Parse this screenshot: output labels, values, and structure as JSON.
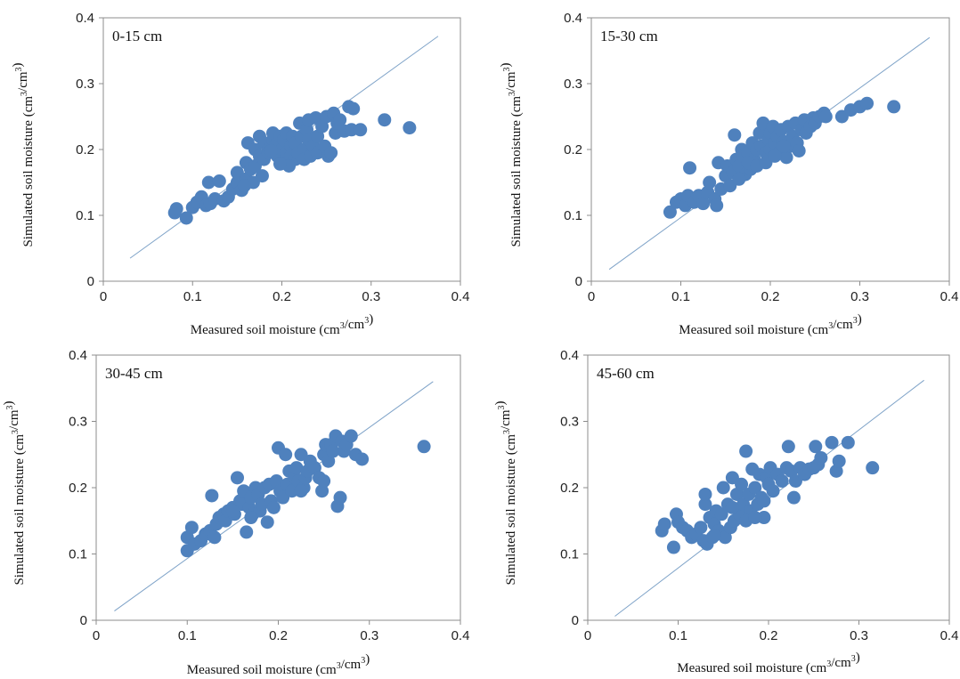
{
  "style": {
    "point_color": "#4f81bd",
    "line_color": "#7fa3c8"
  },
  "chart_data": [
    {
      "type": "scatter",
      "title": "0-15 cm",
      "xlabel": "Measured soil moisture (cm3/cm3)",
      "ylabel": "Simulated soil moisture (cm3/cm3)",
      "xlim": [
        0,
        0.4
      ],
      "ylim": [
        0,
        0.4
      ],
      "xticks": [
        "0",
        "0.1",
        "0.2",
        "0.3",
        "0.4"
      ],
      "yticks": [
        "0",
        "0.1",
        "0.2",
        "0.3",
        "0.4"
      ],
      "reference_line": {
        "x": [
          0.03,
          0.375
        ],
        "y": [
          0.035,
          0.372
        ]
      },
      "points": [
        [
          0.08,
          0.104
        ],
        [
          0.082,
          0.11
        ],
        [
          0.093,
          0.096
        ],
        [
          0.1,
          0.112
        ],
        [
          0.105,
          0.12
        ],
        [
          0.11,
          0.128
        ],
        [
          0.115,
          0.115
        ],
        [
          0.12,
          0.118
        ],
        [
          0.118,
          0.15
        ],
        [
          0.125,
          0.125
        ],
        [
          0.13,
          0.152
        ],
        [
          0.135,
          0.122
        ],
        [
          0.14,
          0.128
        ],
        [
          0.145,
          0.14
        ],
        [
          0.15,
          0.15
        ],
        [
          0.15,
          0.165
        ],
        [
          0.155,
          0.138
        ],
        [
          0.16,
          0.155
        ],
        [
          0.16,
          0.18
        ],
        [
          0.162,
          0.21
        ],
        [
          0.165,
          0.17
        ],
        [
          0.17,
          0.175
        ],
        [
          0.17,
          0.2
        ],
        [
          0.175,
          0.19
        ],
        [
          0.175,
          0.22
        ],
        [
          0.18,
          0.21
        ],
        [
          0.18,
          0.185
        ],
        [
          0.185,
          0.2
        ],
        [
          0.185,
          0.195
        ],
        [
          0.19,
          0.215
        ],
        [
          0.19,
          0.225
        ],
        [
          0.192,
          0.205
        ],
        [
          0.195,
          0.21
        ],
        [
          0.195,
          0.19
        ],
        [
          0.198,
          0.22
        ],
        [
          0.2,
          0.2
        ],
        [
          0.2,
          0.18
        ],
        [
          0.202,
          0.215
        ],
        [
          0.205,
          0.225
        ],
        [
          0.205,
          0.195
        ],
        [
          0.21,
          0.205
        ],
        [
          0.21,
          0.19
        ],
        [
          0.212,
          0.22
        ],
        [
          0.215,
          0.185
        ],
        [
          0.215,
          0.21
        ],
        [
          0.218,
          0.195
        ],
        [
          0.22,
          0.24
        ],
        [
          0.222,
          0.22
        ],
        [
          0.225,
          0.2
        ],
        [
          0.225,
          0.185
        ],
        [
          0.228,
          0.23
        ],
        [
          0.23,
          0.215
        ],
        [
          0.23,
          0.245
        ],
        [
          0.232,
          0.19
        ],
        [
          0.235,
          0.205
        ],
        [
          0.238,
          0.248
        ],
        [
          0.24,
          0.22
        ],
        [
          0.24,
          0.195
        ],
        [
          0.245,
          0.235
        ],
        [
          0.248,
          0.205
        ],
        [
          0.25,
          0.25
        ],
        [
          0.252,
          0.19
        ],
        [
          0.255,
          0.195
        ],
        [
          0.258,
          0.255
        ],
        [
          0.26,
          0.225
        ],
        [
          0.262,
          0.24
        ],
        [
          0.265,
          0.245
        ],
        [
          0.27,
          0.228
        ],
        [
          0.275,
          0.265
        ],
        [
          0.278,
          0.23
        ],
        [
          0.28,
          0.262
        ],
        [
          0.288,
          0.23
        ],
        [
          0.315,
          0.245
        ],
        [
          0.343,
          0.233
        ],
        [
          0.168,
          0.15
        ],
        [
          0.178,
          0.16
        ],
        [
          0.158,
          0.145
        ],
        [
          0.188,
          0.198
        ],
        [
          0.208,
          0.175
        ],
        [
          0.198,
          0.178
        ]
      ]
    },
    {
      "type": "scatter",
      "title": "15-30 cm",
      "xlabel": "Measured soil moisture (cm3/cm3)",
      "ylabel": "Simulated soil moisture (cm3/cm3)",
      "xlim": [
        0,
        0.4
      ],
      "ylim": [
        0,
        0.4
      ],
      "xticks": [
        "0",
        "0.1",
        "0.2",
        "0.3",
        "0.4"
      ],
      "yticks": [
        "0",
        "0.1",
        "0.2",
        "0.3",
        "0.4"
      ],
      "reference_line": {
        "x": [
          0.02,
          0.378
        ],
        "y": [
          0.018,
          0.37
        ]
      },
      "points": [
        [
          0.088,
          0.105
        ],
        [
          0.095,
          0.12
        ],
        [
          0.1,
          0.125
        ],
        [
          0.105,
          0.115
        ],
        [
          0.108,
          0.13
        ],
        [
          0.11,
          0.172
        ],
        [
          0.115,
          0.12
        ],
        [
          0.12,
          0.13
        ],
        [
          0.125,
          0.118
        ],
        [
          0.13,
          0.135
        ],
        [
          0.132,
          0.15
        ],
        [
          0.138,
          0.125
        ],
        [
          0.14,
          0.115
        ],
        [
          0.142,
          0.18
        ],
        [
          0.145,
          0.14
        ],
        [
          0.15,
          0.16
        ],
        [
          0.152,
          0.175
        ],
        [
          0.155,
          0.145
        ],
        [
          0.158,
          0.165
        ],
        [
          0.16,
          0.222
        ],
        [
          0.162,
          0.185
        ],
        [
          0.165,
          0.175
        ],
        [
          0.168,
          0.2
        ],
        [
          0.17,
          0.19
        ],
        [
          0.172,
          0.162
        ],
        [
          0.175,
          0.195
        ],
        [
          0.178,
          0.17
        ],
        [
          0.18,
          0.21
        ],
        [
          0.182,
          0.185
        ],
        [
          0.185,
          0.2
        ],
        [
          0.188,
          0.225
        ],
        [
          0.19,
          0.205
        ],
        [
          0.192,
          0.24
        ],
        [
          0.195,
          0.195
        ],
        [
          0.198,
          0.215
        ],
        [
          0.2,
          0.225
        ],
        [
          0.2,
          0.2
        ],
        [
          0.203,
          0.235
        ],
        [
          0.205,
          0.21
        ],
        [
          0.208,
          0.22
        ],
        [
          0.21,
          0.195
        ],
        [
          0.212,
          0.23
        ],
        [
          0.215,
          0.212
        ],
        [
          0.218,
          0.188
        ],
        [
          0.22,
          0.235
        ],
        [
          0.222,
          0.205
        ],
        [
          0.225,
          0.22
        ],
        [
          0.228,
          0.24
        ],
        [
          0.23,
          0.21
        ],
        [
          0.232,
          0.198
        ],
        [
          0.235,
          0.23
        ],
        [
          0.238,
          0.245
        ],
        [
          0.24,
          0.225
        ],
        [
          0.245,
          0.235
        ],
        [
          0.248,
          0.248
        ],
        [
          0.25,
          0.24
        ],
        [
          0.255,
          0.25
        ],
        [
          0.26,
          0.255
        ],
        [
          0.262,
          0.25
        ],
        [
          0.28,
          0.25
        ],
        [
          0.29,
          0.26
        ],
        [
          0.3,
          0.265
        ],
        [
          0.308,
          0.27
        ],
        [
          0.338,
          0.265
        ],
        [
          0.175,
          0.18
        ],
        [
          0.185,
          0.175
        ],
        [
          0.195,
          0.18
        ],
        [
          0.165,
          0.155
        ],
        [
          0.205,
          0.19
        ],
        [
          0.215,
          0.205
        ]
      ]
    },
    {
      "type": "scatter",
      "title": "30-45 cm",
      "xlabel": "Measured soil moisture (cm3/cm3)",
      "ylabel": "Simulated soil moisture (cm3/cm3)",
      "xlim": [
        0,
        0.4
      ],
      "ylim": [
        0,
        0.4
      ],
      "xticks": [
        "0",
        "0.1",
        "0.2",
        "0.3",
        "0.4"
      ],
      "yticks": [
        "0",
        "0.1",
        "0.2",
        "0.3",
        "0.4"
      ],
      "reference_line": {
        "x": [
          0.02,
          0.37
        ],
        "y": [
          0.014,
          0.36
        ]
      },
      "points": [
        [
          0.1,
          0.105
        ],
        [
          0.1,
          0.125
        ],
        [
          0.105,
          0.14
        ],
        [
          0.108,
          0.115
        ],
        [
          0.115,
          0.12
        ],
        [
          0.12,
          0.13
        ],
        [
          0.125,
          0.135
        ],
        [
          0.127,
          0.188
        ],
        [
          0.13,
          0.125
        ],
        [
          0.132,
          0.145
        ],
        [
          0.135,
          0.155
        ],
        [
          0.14,
          0.16
        ],
        [
          0.142,
          0.15
        ],
        [
          0.145,
          0.165
        ],
        [
          0.15,
          0.17
        ],
        [
          0.152,
          0.16
        ],
        [
          0.155,
          0.215
        ],
        [
          0.158,
          0.18
        ],
        [
          0.16,
          0.175
        ],
        [
          0.162,
          0.195
        ],
        [
          0.165,
          0.133
        ],
        [
          0.168,
          0.17
        ],
        [
          0.17,
          0.185
        ],
        [
          0.172,
          0.16
        ],
        [
          0.175,
          0.2
        ],
        [
          0.178,
          0.19
        ],
        [
          0.18,
          0.165
        ],
        [
          0.182,
          0.175
        ],
        [
          0.185,
          0.2
        ],
        [
          0.188,
          0.148
        ],
        [
          0.19,
          0.205
        ],
        [
          0.192,
          0.18
        ],
        [
          0.195,
          0.17
        ],
        [
          0.198,
          0.21
        ],
        [
          0.2,
          0.26
        ],
        [
          0.202,
          0.195
        ],
        [
          0.205,
          0.185
        ],
        [
          0.208,
          0.25
        ],
        [
          0.21,
          0.205
        ],
        [
          0.212,
          0.225
        ],
        [
          0.215,
          0.195
        ],
        [
          0.218,
          0.215
        ],
        [
          0.22,
          0.23
        ],
        [
          0.222,
          0.21
        ],
        [
          0.225,
          0.25
        ],
        [
          0.228,
          0.2
        ],
        [
          0.23,
          0.215
        ],
        [
          0.232,
          0.225
        ],
        [
          0.235,
          0.24
        ],
        [
          0.24,
          0.23
        ],
        [
          0.245,
          0.215
        ],
        [
          0.248,
          0.195
        ],
        [
          0.25,
          0.25
        ],
        [
          0.252,
          0.265
        ],
        [
          0.255,
          0.24
        ],
        [
          0.258,
          0.265
        ],
        [
          0.26,
          0.255
        ],
        [
          0.263,
          0.278
        ],
        [
          0.265,
          0.172
        ],
        [
          0.268,
          0.185
        ],
        [
          0.27,
          0.27
        ],
        [
          0.272,
          0.255
        ],
        [
          0.275,
          0.265
        ],
        [
          0.28,
          0.278
        ],
        [
          0.285,
          0.25
        ],
        [
          0.292,
          0.243
        ],
        [
          0.36,
          0.262
        ],
        [
          0.17,
          0.155
        ],
        [
          0.15,
          0.165
        ],
        [
          0.225,
          0.195
        ],
        [
          0.25,
          0.21
        ]
      ]
    },
    {
      "type": "scatter",
      "title": "45-60 cm",
      "xlabel": "Measured soil moisture (cm3/cm3)",
      "ylabel": "Simulated soil moisture (cm3/cm3)",
      "xlim": [
        0,
        0.4
      ],
      "ylim": [
        0,
        0.4
      ],
      "xticks": [
        "0",
        "0.1",
        "0.2",
        "0.3",
        "0.4"
      ],
      "yticks": [
        "0",
        "0.1",
        "0.2",
        "0.3",
        "0.4"
      ],
      "reference_line": {
        "x": [
          0.03,
          0.372
        ],
        "y": [
          0.006,
          0.362
        ]
      },
      "points": [
        [
          0.082,
          0.135
        ],
        [
          0.085,
          0.145
        ],
        [
          0.095,
          0.11
        ],
        [
          0.098,
          0.16
        ],
        [
          0.1,
          0.148
        ],
        [
          0.105,
          0.14
        ],
        [
          0.11,
          0.135
        ],
        [
          0.115,
          0.125
        ],
        [
          0.12,
          0.13
        ],
        [
          0.125,
          0.14
        ],
        [
          0.128,
          0.12
        ],
        [
          0.13,
          0.175
        ],
        [
          0.13,
          0.19
        ],
        [
          0.132,
          0.115
        ],
        [
          0.135,
          0.155
        ],
        [
          0.138,
          0.125
        ],
        [
          0.14,
          0.145
        ],
        [
          0.142,
          0.165
        ],
        [
          0.145,
          0.135
        ],
        [
          0.148,
          0.16
        ],
        [
          0.15,
          0.2
        ],
        [
          0.152,
          0.125
        ],
        [
          0.155,
          0.175
        ],
        [
          0.158,
          0.14
        ],
        [
          0.16,
          0.215
        ],
        [
          0.162,
          0.15
        ],
        [
          0.165,
          0.19
        ],
        [
          0.168,
          0.16
        ],
        [
          0.17,
          0.205
        ],
        [
          0.172,
          0.175
        ],
        [
          0.175,
          0.255
        ],
        [
          0.178,
          0.19
        ],
        [
          0.18,
          0.165
        ],
        [
          0.182,
          0.228
        ],
        [
          0.185,
          0.2
        ],
        [
          0.188,
          0.175
        ],
        [
          0.19,
          0.22
        ],
        [
          0.192,
          0.185
        ],
        [
          0.195,
          0.155
        ],
        [
          0.198,
          0.215
        ],
        [
          0.2,
          0.205
        ],
        [
          0.202,
          0.23
        ],
        [
          0.205,
          0.195
        ],
        [
          0.21,
          0.22
        ],
        [
          0.215,
          0.21
        ],
        [
          0.22,
          0.23
        ],
        [
          0.222,
          0.262
        ],
        [
          0.225,
          0.225
        ],
        [
          0.228,
          0.185
        ],
        [
          0.23,
          0.21
        ],
        [
          0.235,
          0.23
        ],
        [
          0.24,
          0.22
        ],
        [
          0.245,
          0.228
        ],
        [
          0.25,
          0.23
        ],
        [
          0.252,
          0.262
        ],
        [
          0.255,
          0.235
        ],
        [
          0.258,
          0.245
        ],
        [
          0.27,
          0.268
        ],
        [
          0.275,
          0.225
        ],
        [
          0.278,
          0.24
        ],
        [
          0.288,
          0.268
        ],
        [
          0.315,
          0.23
        ],
        [
          0.16,
          0.17
        ],
        [
          0.175,
          0.15
        ],
        [
          0.14,
          0.128
        ],
        [
          0.185,
          0.155
        ],
        [
          0.195,
          0.18
        ]
      ]
    }
  ]
}
